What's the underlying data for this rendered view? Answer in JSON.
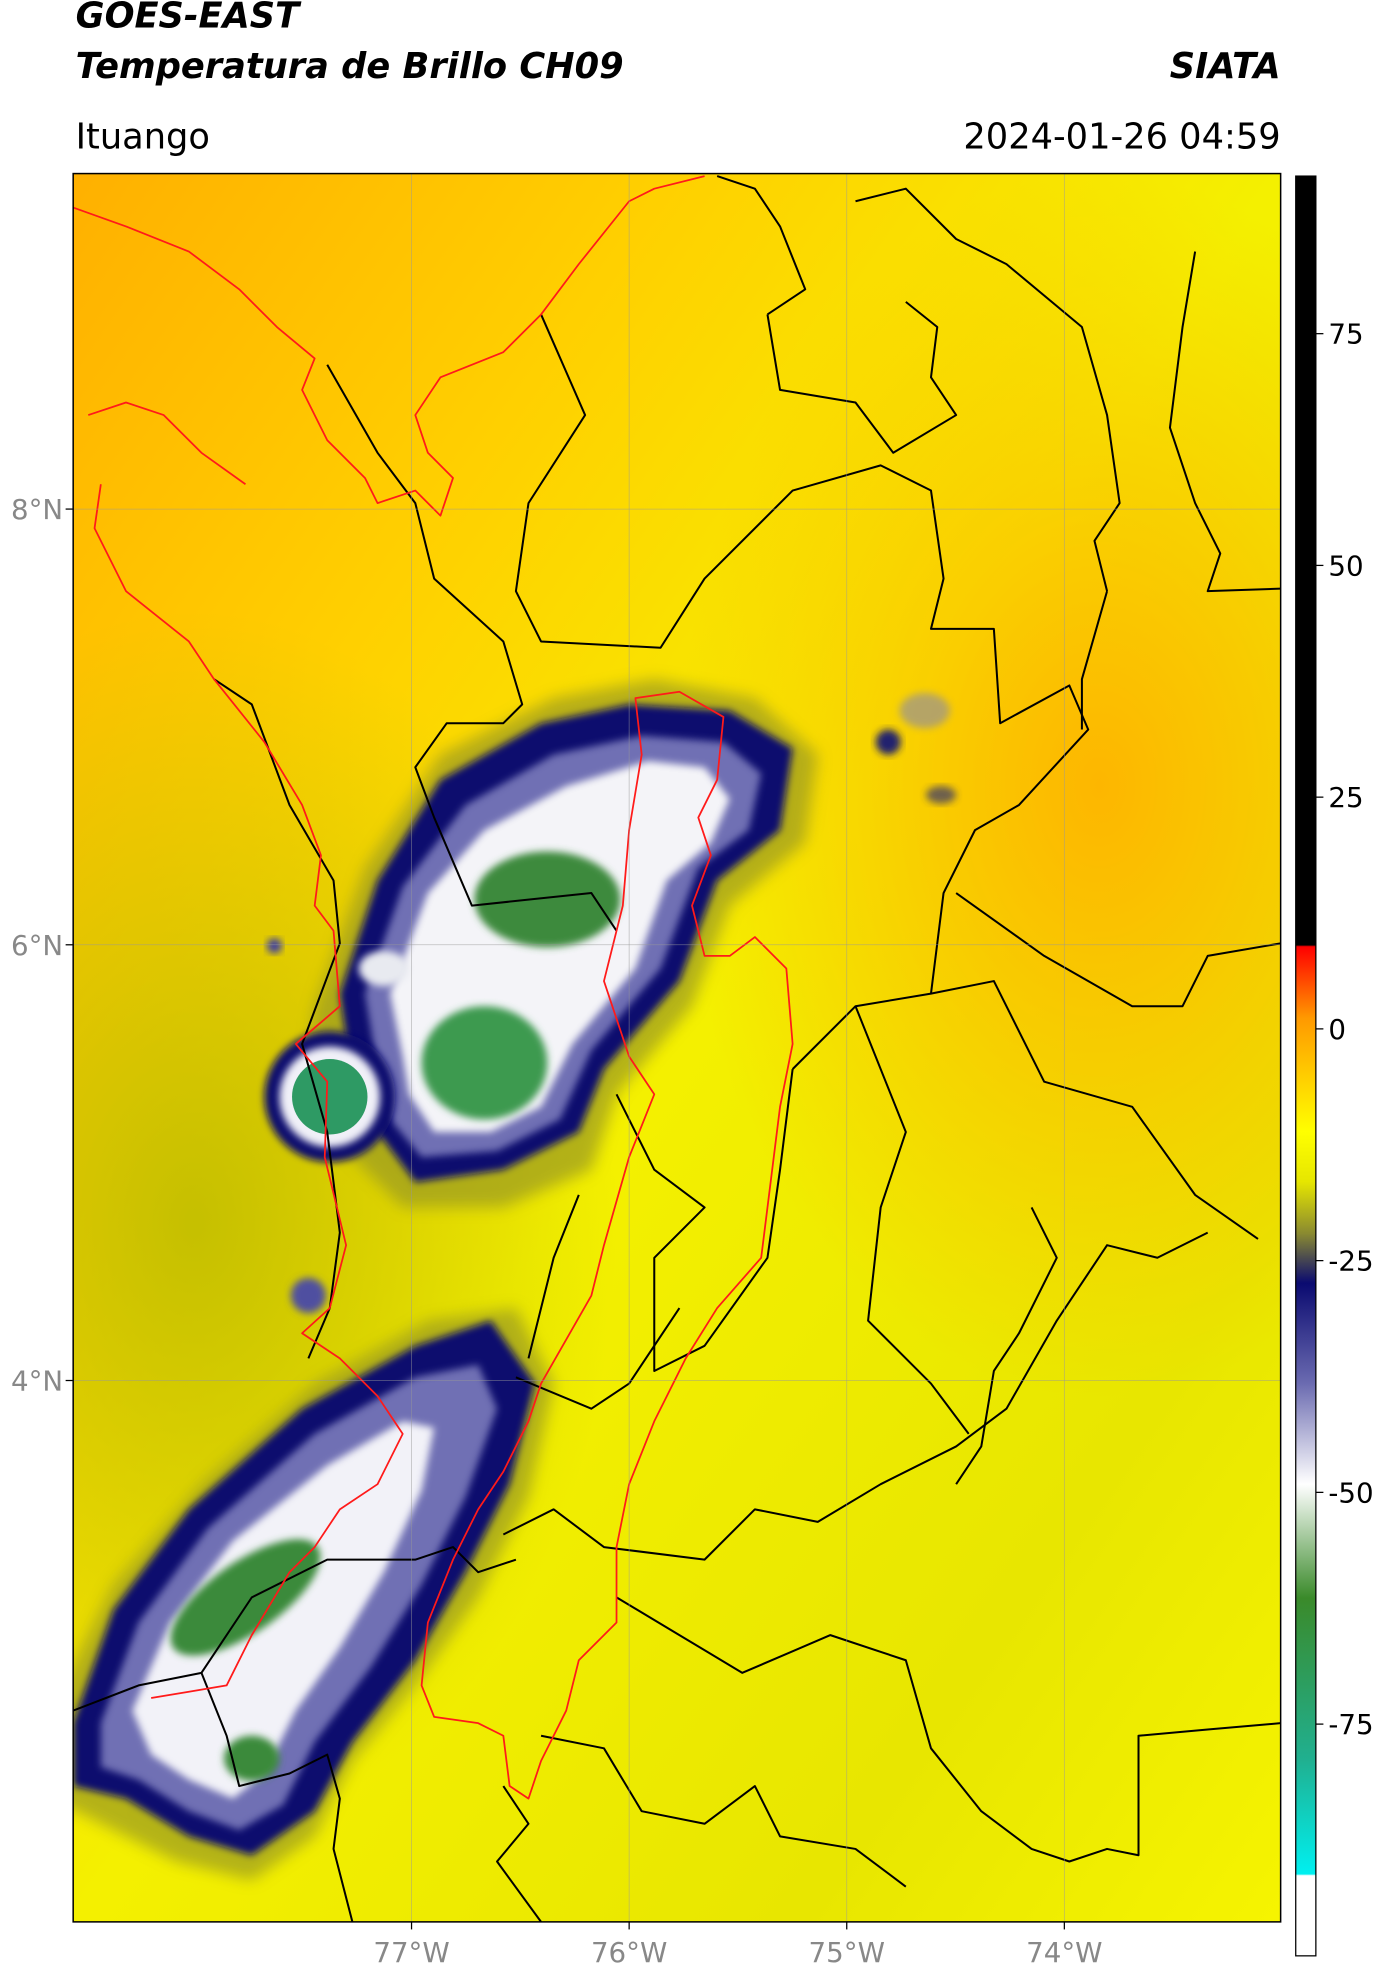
{
  "header": {
    "satellite": "GOES-EAST",
    "product": "Temperatura de Brillo CH09",
    "source": "SIATA",
    "region": "Ituango",
    "datetime": "2024-01-26 04:59"
  },
  "map": {
    "xlim": [
      -78.555,
      -73.006
    ],
    "ylim": [
      1.515,
      9.54
    ],
    "xticks": [
      {
        "value": -77,
        "label": "77°W"
      },
      {
        "value": -76,
        "label": "76°W"
      },
      {
        "value": -75,
        "label": "75°W"
      },
      {
        "value": -74,
        "label": "74°W"
      }
    ],
    "yticks": [
      {
        "value": 8,
        "label": "8°N"
      },
      {
        "value": 6,
        "label": "6°N"
      },
      {
        "value": 4,
        "label": "4°N"
      }
    ],
    "grid": true
  },
  "colorbar": {
    "clim": [
      -100,
      92
    ],
    "ticks": [
      75,
      50,
      25,
      0,
      -25,
      -50,
      -75
    ]
  }
}
